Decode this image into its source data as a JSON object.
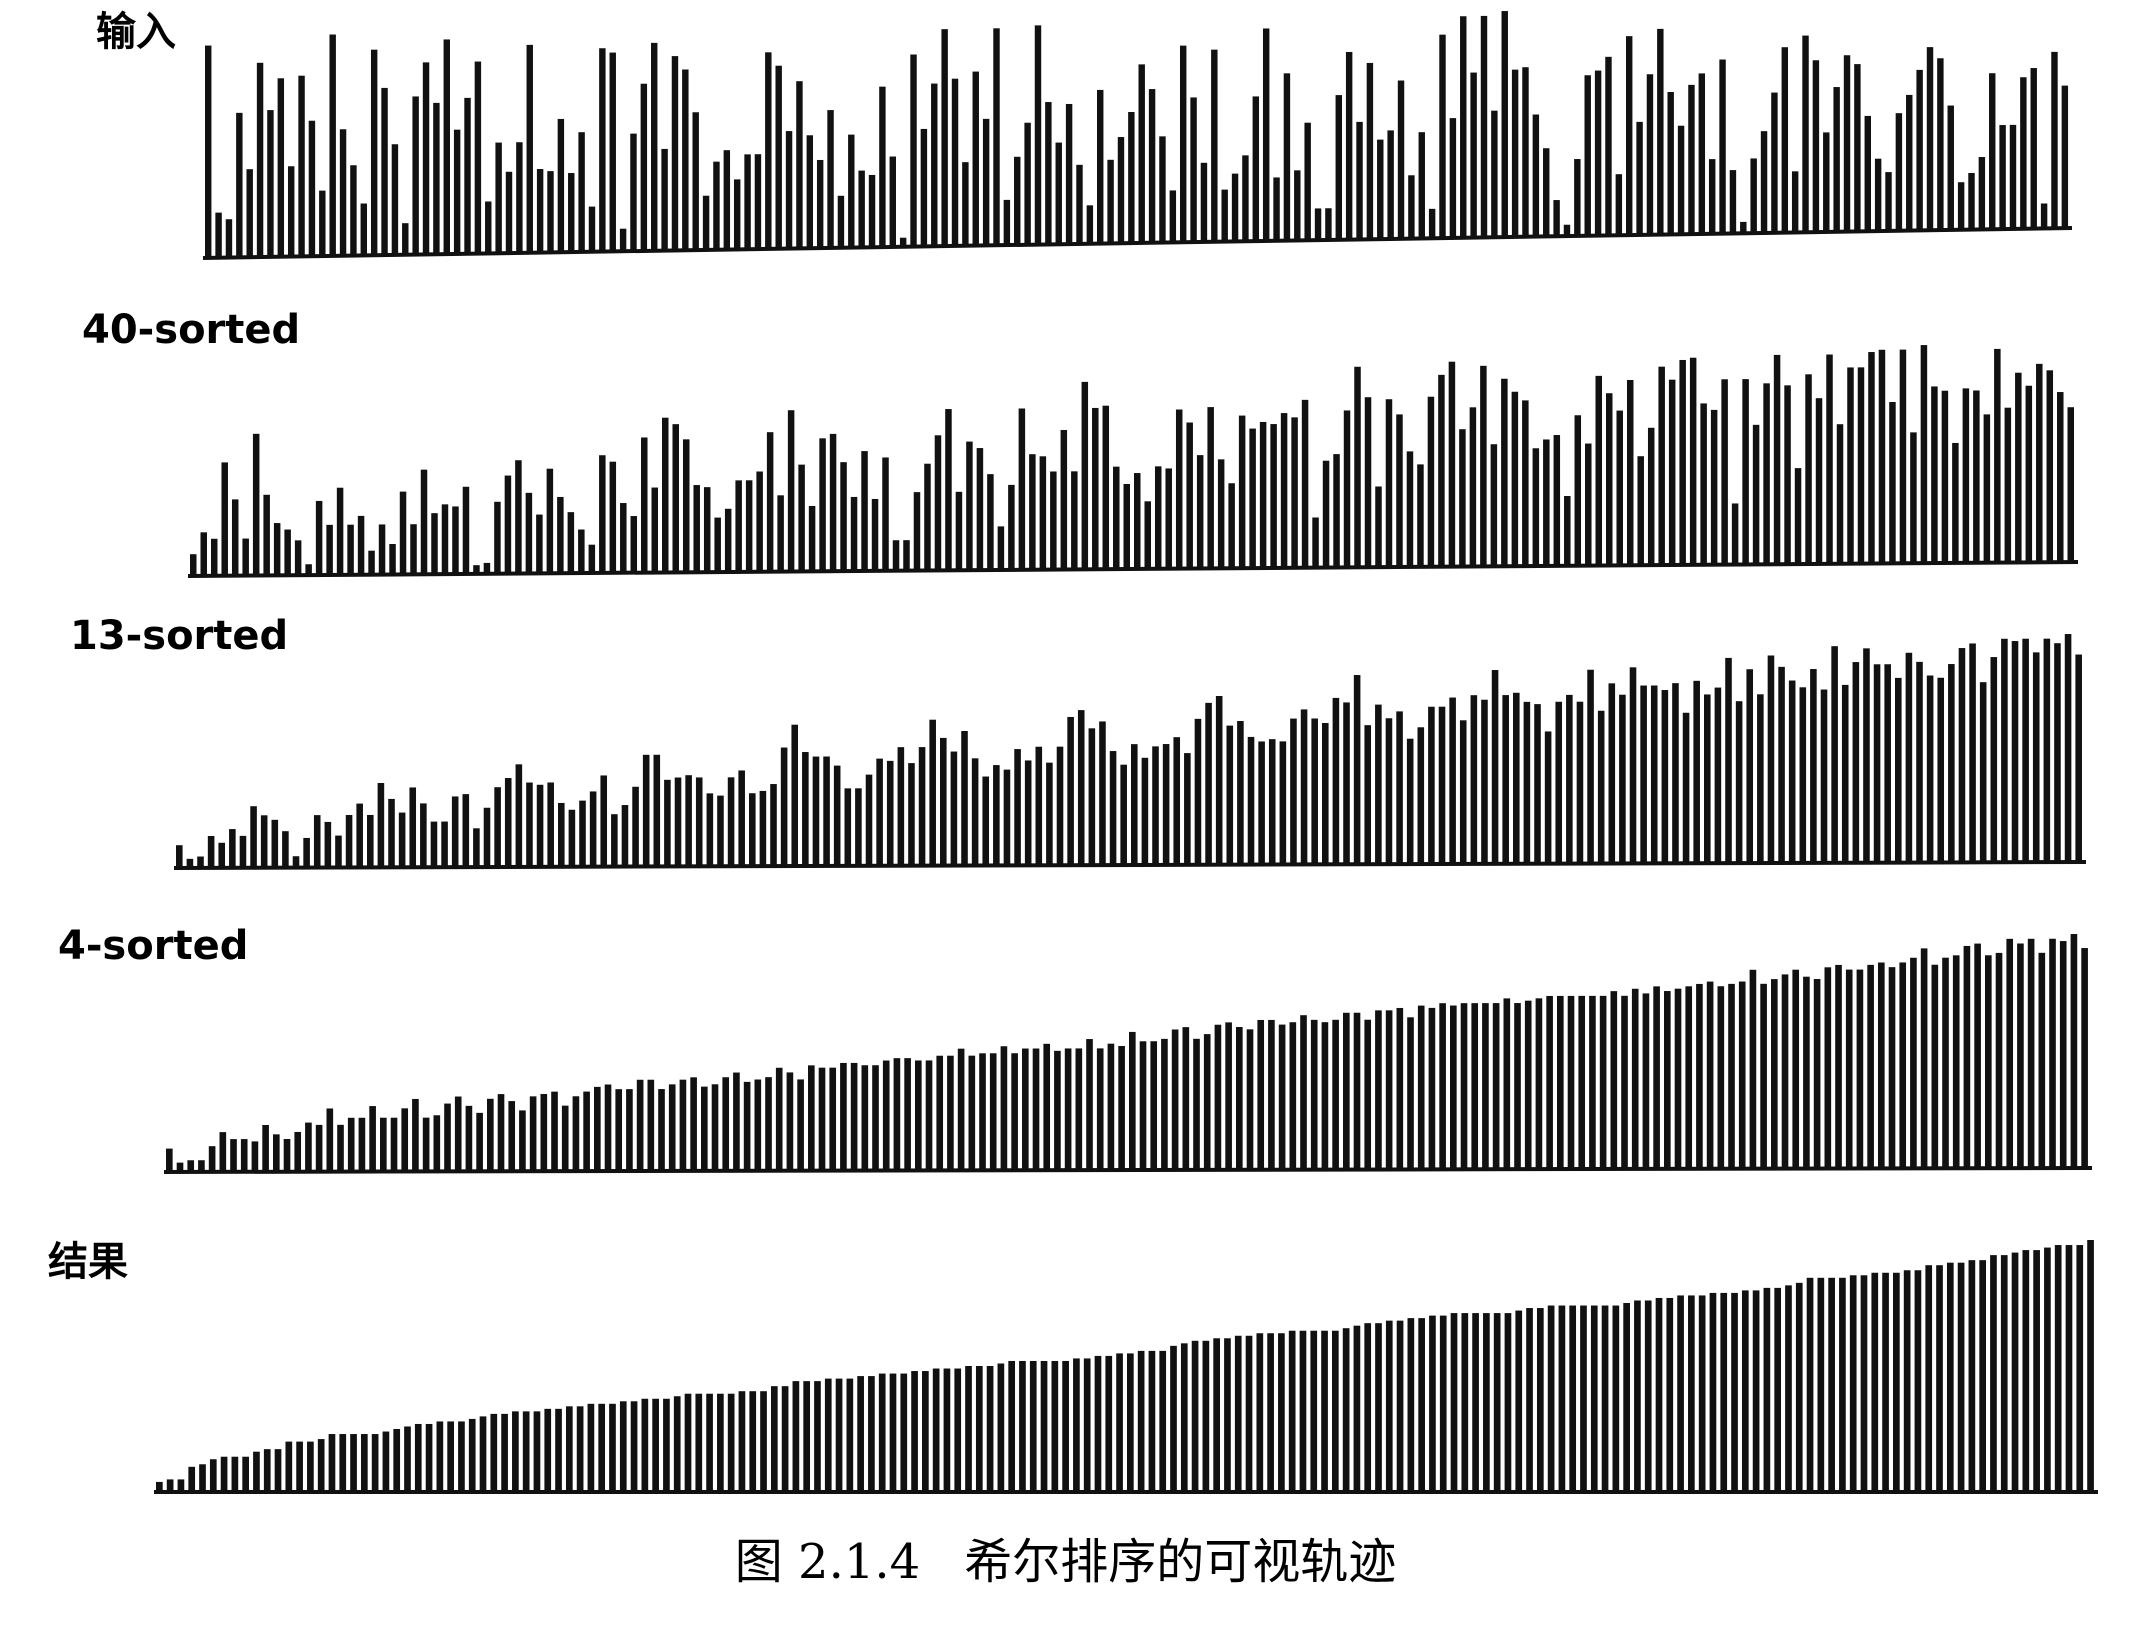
{
  "figure": {
    "number": "图 2.1.4",
    "title": "希尔排序的可视轨迹"
  },
  "stages": [
    {
      "label": "输入"
    },
    {
      "label": "40-sorted"
    },
    {
      "label": "13-sorted"
    },
    {
      "label": "4-sorted"
    },
    {
      "label": "结果"
    }
  ],
  "colors": {
    "bar": "#111111",
    "background": "#ffffff"
  },
  "chart_data": {
    "type": "bar",
    "note_count": 0,
    "series": [
      {
        "values": []
      },
      {
        "values": []
      },
      {
        "values": []
      },
      {
        "values": []
      },
      {
        "values": []
      }
    ]
  }
}
